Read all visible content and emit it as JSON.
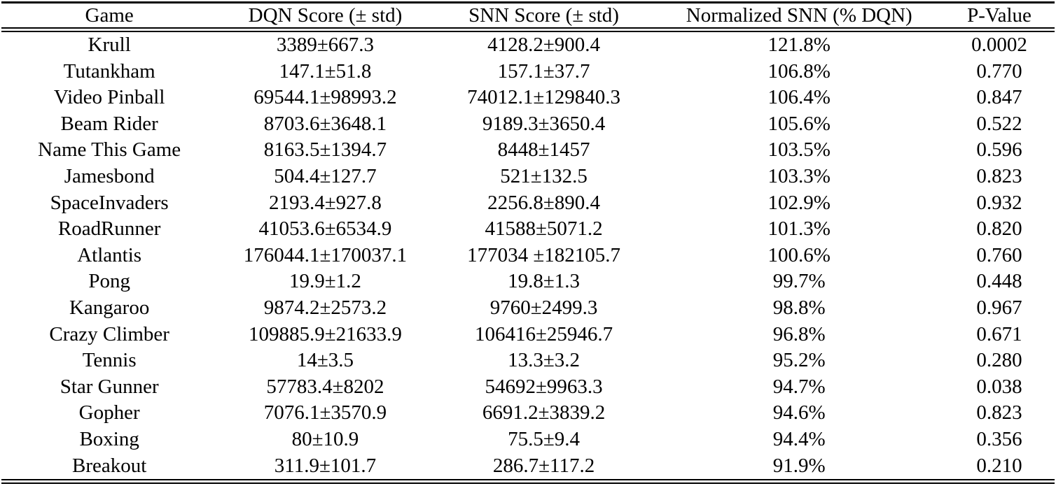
{
  "table": {
    "columns": [
      "Game",
      "DQN Score (± std)",
      "SNN Score (± std)",
      "Normalized SNN (% DQN)",
      "P-Value"
    ],
    "column_keys": [
      "game",
      "dqn-score",
      "snn-score",
      "normalized-snn",
      "p-value"
    ],
    "rows": [
      [
        "Krull",
        "3389±667.3",
        "4128.2±900.4",
        "121.8%",
        "0.0002"
      ],
      [
        "Tutankham",
        "147.1±51.8",
        "157.1±37.7",
        "106.8%",
        "0.770"
      ],
      [
        "Video Pinball",
        "69544.1±98993.2",
        "74012.1±129840.3",
        "106.4%",
        "0.847"
      ],
      [
        "Beam Rider",
        "8703.6±3648.1",
        "9189.3±3650.4",
        "105.6%",
        "0.522"
      ],
      [
        "Name This Game",
        "8163.5±1394.7",
        "8448±1457",
        "103.5%",
        "0.596"
      ],
      [
        "Jamesbond",
        "504.4±127.7",
        "521±132.5",
        "103.3%",
        "0.823"
      ],
      [
        "SpaceInvaders",
        "2193.4±927.8",
        "2256.8±890.4",
        "102.9%",
        "0.932"
      ],
      [
        "RoadRunner",
        "41053.6±6534.9",
        "41588±5071.2",
        "101.3%",
        "0.820"
      ],
      [
        "Atlantis",
        "176044.1±170037.1",
        "177034 ±182105.7",
        "100.6%",
        "0.760"
      ],
      [
        "Pong",
        "19.9±1.2",
        "19.8±1.3",
        "99.7%",
        "0.448"
      ],
      [
        "Kangaroo",
        "9874.2±2573.2",
        "9760±2499.3",
        "98.8%",
        "0.967"
      ],
      [
        "Crazy Climber",
        "109885.9±21633.9",
        "106416±25946.7",
        "96.8%",
        "0.671"
      ],
      [
        "Tennis",
        "14±3.5",
        "13.3±3.2",
        "95.2%",
        "0.280"
      ],
      [
        "Star Gunner",
        "57783.4±8202",
        "54692±9963.3",
        "94.7%",
        "0.038"
      ],
      [
        "Gopher",
        "7076.1±3570.9",
        "6691.2±3839.2",
        "94.6%",
        "0.823"
      ],
      [
        "Boxing",
        "80±10.9",
        "75.5±9.4",
        "94.4%",
        "0.356"
      ],
      [
        "Breakout",
        "311.9±101.7",
        "286.7±117.2",
        "91.9%",
        "0.210"
      ]
    ],
    "text_color": "#000000",
    "rule_color": "#000000"
  }
}
